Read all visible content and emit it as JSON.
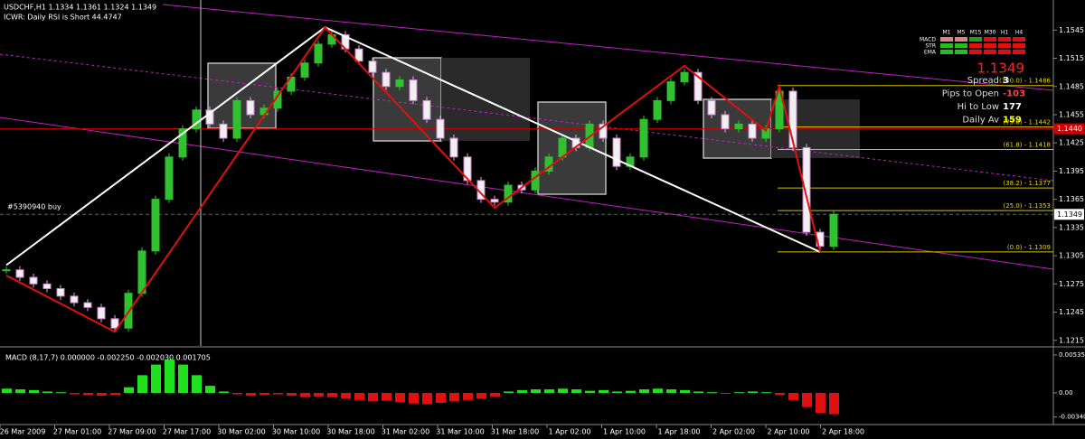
{
  "header": {
    "symbol_line": "USDCHF,H1  1.1334 1.1361 1.1324 1.1349",
    "indicator_line": "ICWR: Daily RSI is Short 44.4747",
    "order_label": "#5390940 buy"
  },
  "price_axis": {
    "lim": [
      1.1209,
      1.1577
    ],
    "ticks": [
      1.1545,
      1.1515,
      1.1485,
      1.1455,
      1.1425,
      1.1395,
      1.1365,
      1.1335,
      1.1305,
      1.1275,
      1.1245,
      1.1215
    ],
    "markers": [
      {
        "value": 1.144,
        "label": "1.1440",
        "color": "#d00000"
      },
      {
        "value": 1.1349,
        "label": "1.1349",
        "color": "#ffffff"
      }
    ]
  },
  "time_axis": {
    "labels": [
      "26 Mar 2009",
      "27 Mar 01:00",
      "27 Mar 09:00",
      "27 Mar 17:00",
      "30 Mar 02:00",
      "30 Mar 10:00",
      "30 Mar 18:00",
      "31 Mar 02:00",
      "31 Mar 10:00",
      "31 Mar 18:00",
      "1 Apr 02:00",
      "1 Apr 10:00",
      "1 Apr 18:00",
      "2 Apr 02:00",
      "2 Apr 10:00",
      "2 Apr 18:00"
    ]
  },
  "closes": [
    1.129,
    1.1282,
    1.1275,
    1.127,
    1.1262,
    1.1255,
    1.125,
    1.1238,
    1.1228,
    1.1265,
    1.131,
    1.1365,
    1.141,
    1.144,
    1.146,
    1.1445,
    1.143,
    1.147,
    1.1455,
    1.1462,
    1.148,
    1.1495,
    1.151,
    1.153,
    1.154,
    1.1525,
    1.1512,
    1.15,
    1.1485,
    1.1492,
    1.147,
    1.145,
    1.143,
    1.141,
    1.1385,
    1.1365,
    1.1362,
    1.138,
    1.1375,
    1.1395,
    1.141,
    1.143,
    1.142,
    1.1445,
    1.143,
    1.14,
    1.141,
    1.145,
    1.147,
    1.149,
    1.15,
    1.147,
    1.1455,
    1.144,
    1.1445,
    1.143,
    1.144,
    1.148,
    1.142,
    1.133,
    1.1315,
    1.1349
  ],
  "zigzag_white": {
    "x": [
      0,
      23.5,
      60
    ],
    "values": [
      1.1295,
      1.1548,
      1.1309
    ]
  },
  "zigzag_red": {
    "x": [
      0,
      8,
      23.5,
      36,
      50,
      56,
      57,
      60
    ],
    "values": [
      1.1284,
      1.1224,
      1.1548,
      1.1356,
      1.1507,
      1.1438,
      1.1485,
      1.1309
    ]
  },
  "fib_levels": [
    {
      "value": 1.1486,
      "label": "(100.0) - 1.1486"
    },
    {
      "value": 1.1442,
      "label": "(75.0) - 1.1442"
    },
    {
      "value": 1.1418,
      "label": "(61.8) - 1.1418"
    },
    {
      "value": 1.1377,
      "label": "(38.2) - 1.1377"
    },
    {
      "value": 1.1353,
      "label": "(25.0) - 1.1353"
    },
    {
      "value": 1.1309,
      "label": "(0.0) - 1.1309"
    }
  ],
  "info_panel": {
    "timeframes": [
      "M1",
      "M5",
      "M15",
      "M30",
      "H1",
      "H4"
    ],
    "rows": [
      "MACD",
      "STR",
      "EMA"
    ],
    "price": "1.1349",
    "stats": [
      {
        "label": "Spread",
        "value": "3"
      },
      {
        "label": "Pips to Open",
        "value": "-103"
      },
      {
        "label": "Hi to Low",
        "value": "177"
      },
      {
        "label": "Daily Av",
        "value": "159"
      }
    ]
  },
  "macd": {
    "label": "MACD (8,17,7) 0.000000 -0.002250 -0.002030 0.001705",
    "lim": [
      -0.00446,
      0.00624
    ],
    "ticks": [
      0.00535,
      {
        "value": 0,
        "label": "0.00"
      },
      {
        "value": -0.0034,
        "label": "-0.00340"
      }
    ],
    "histogram": [
      0.0006,
      0.0005,
      0.0004,
      0.0002,
      0.0001,
      -0.0002,
      -0.0003,
      -0.0004,
      -0.0003,
      0.0008,
      0.0025,
      0.004,
      0.0047,
      0.004,
      0.0025,
      0.001,
      0.0002,
      -0.0002,
      -0.0004,
      -0.0003,
      -0.0002,
      -0.0004,
      -0.0006,
      -0.0005,
      -0.0006,
      -0.0008,
      -0.001,
      -0.0012,
      -0.0011,
      -0.0013,
      -0.0015,
      -0.0016,
      -0.0014,
      -0.0012,
      -0.001,
      -0.0008,
      -0.0005,
      0.0002,
      0.0004,
      0.0005,
      0.0005,
      0.0006,
      0.0005,
      0.0003,
      0.0004,
      0.0002,
      0.0003,
      0.0005,
      0.0006,
      0.0005,
      0.0004,
      0.0002,
      0.0001,
      -0.0001,
      0.0001,
      0.0002,
      0.0001,
      -0.0003,
      -0.001,
      -0.002,
      -0.0028,
      -0.003
    ]
  }
}
